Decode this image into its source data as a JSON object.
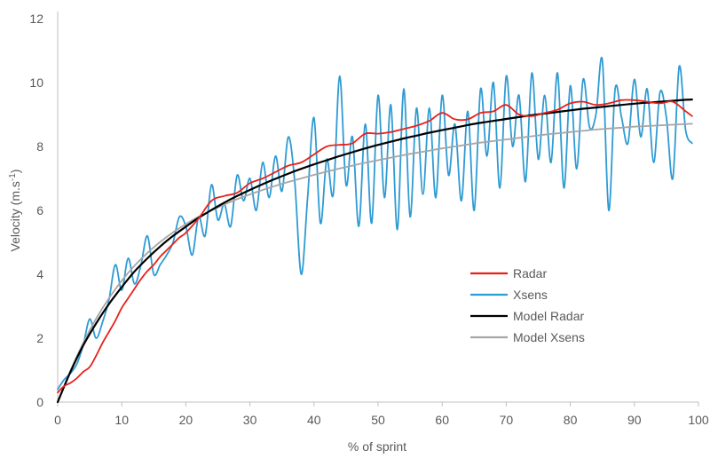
{
  "chart_data": {
    "type": "line",
    "title": "",
    "xlabel": "% of sprint",
    "ylabel_main": "Velocity (m.s",
    "ylabel_sup": "-1",
    "ylabel_close": ")",
    "xlim": [
      0,
      100
    ],
    "ylim": [
      0,
      12
    ],
    "x_ticks": [
      "0",
      "10",
      "20",
      "30",
      "40",
      "50",
      "60",
      "70",
      "80",
      "90",
      "100"
    ],
    "y_ticks": [
      "0",
      "2",
      "4",
      "6",
      "8",
      "10",
      "12"
    ],
    "grid": false,
    "legend_position": "right-center",
    "series": [
      {
        "name": "Radar",
        "color": "#e8201a",
        "x": [
          0,
          1,
          2,
          3,
          4,
          5,
          6,
          7,
          8,
          9,
          10,
          11,
          12,
          13,
          14,
          15,
          16,
          17,
          18,
          19,
          20,
          22,
          24,
          26,
          28,
          30,
          32,
          34,
          36,
          38,
          40,
          42,
          44,
          46,
          48,
          50,
          52,
          54,
          56,
          58,
          60,
          62,
          64,
          66,
          68,
          70,
          72,
          74,
          76,
          78,
          80,
          82,
          84,
          86,
          88,
          90,
          92,
          94,
          96,
          98,
          99
        ],
        "y": [
          0.3,
          0.5,
          0.6,
          0.75,
          0.95,
          1.1,
          1.45,
          1.85,
          2.2,
          2.55,
          2.95,
          3.25,
          3.55,
          3.85,
          4.1,
          4.3,
          4.55,
          4.75,
          4.95,
          5.15,
          5.3,
          5.75,
          6.3,
          6.45,
          6.55,
          6.85,
          7.0,
          7.2,
          7.4,
          7.5,
          7.75,
          8.0,
          8.05,
          8.1,
          8.4,
          8.4,
          8.45,
          8.55,
          8.65,
          8.8,
          9.05,
          8.85,
          8.85,
          9.05,
          9.1,
          9.3,
          9.0,
          8.95,
          9.05,
          9.15,
          9.35,
          9.4,
          9.3,
          9.35,
          9.45,
          9.45,
          9.4,
          9.35,
          9.4,
          9.1,
          8.95
        ]
      },
      {
        "name": "Xsens",
        "color": "#2f9bd3",
        "x": [
          0,
          1,
          2,
          3,
          4,
          5,
          6,
          7,
          8,
          9,
          10,
          11,
          12,
          13,
          14,
          15,
          16,
          17,
          18,
          19,
          20,
          21,
          22,
          23,
          24,
          25,
          26,
          27,
          28,
          29,
          30,
          31,
          32,
          33,
          34,
          35,
          36,
          37,
          38,
          39,
          40,
          41,
          42,
          43,
          44,
          45,
          46,
          47,
          48,
          49,
          50,
          51,
          52,
          53,
          54,
          55,
          56,
          57,
          58,
          59,
          60,
          61,
          62,
          63,
          64,
          65,
          66,
          67,
          68,
          69,
          70,
          71,
          72,
          73,
          74,
          75,
          76,
          77,
          78,
          79,
          80,
          81,
          82,
          83,
          84,
          85,
          86,
          87,
          88,
          89,
          90,
          91,
          92,
          93,
          94,
          95,
          96,
          97,
          98,
          99
        ],
        "y": [
          0.4,
          0.7,
          0.9,
          1.2,
          1.8,
          2.6,
          2.0,
          2.5,
          3.2,
          4.3,
          3.5,
          4.5,
          3.7,
          4.3,
          5.2,
          4.0,
          4.3,
          4.6,
          5.0,
          5.8,
          5.5,
          4.6,
          5.8,
          5.2,
          6.8,
          5.7,
          6.2,
          5.5,
          7.1,
          6.3,
          7.0,
          6.0,
          7.5,
          6.4,
          7.7,
          6.6,
          8.3,
          6.9,
          4.0,
          6.4,
          8.9,
          5.6,
          7.6,
          6.5,
          10.2,
          6.8,
          8.3,
          5.5,
          8.7,
          5.6,
          9.6,
          6.4,
          9.3,
          5.4,
          9.8,
          5.8,
          9.2,
          6.5,
          9.2,
          6.4,
          9.6,
          7.1,
          8.7,
          6.3,
          9.1,
          6.0,
          9.8,
          7.7,
          10.0,
          6.7,
          10.2,
          8.0,
          9.6,
          6.9,
          10.3,
          7.6,
          9.6,
          7.5,
          10.3,
          6.7,
          9.9,
          7.3,
          10.1,
          8.6,
          9.0,
          10.7,
          6.0,
          9.8,
          8.9,
          8.1,
          10.1,
          8.3,
          9.8,
          7.5,
          9.7,
          8.9,
          7.0,
          10.5,
          8.5,
          8.1
        ]
      },
      {
        "name": "Model Radar",
        "color": "#000000",
        "x": [
          0,
          2,
          4,
          6,
          8,
          10,
          12,
          14,
          16,
          18,
          20,
          22,
          24,
          26,
          28,
          30,
          32,
          34,
          36,
          38,
          40,
          42,
          44,
          46,
          48,
          50,
          52,
          54,
          56,
          58,
          60,
          62,
          64,
          66,
          68,
          70,
          72,
          74,
          76,
          78,
          80,
          82,
          84,
          86,
          88,
          90,
          92,
          94,
          96,
          98,
          99
        ],
        "y": [
          0,
          0.95,
          1.78,
          2.46,
          3.07,
          3.6,
          4.09,
          4.5,
          4.87,
          5.2,
          5.49,
          5.77,
          6.01,
          6.24,
          6.45,
          6.64,
          6.82,
          6.99,
          7.15,
          7.3,
          7.44,
          7.57,
          7.7,
          7.82,
          7.94,
          8.05,
          8.15,
          8.25,
          8.34,
          8.43,
          8.51,
          8.59,
          8.67,
          8.74,
          8.8,
          8.86,
          8.92,
          8.98,
          9.03,
          9.08,
          9.13,
          9.18,
          9.22,
          9.26,
          9.3,
          9.34,
          9.37,
          9.4,
          9.43,
          9.46,
          9.47
        ]
      },
      {
        "name": "Model Xsens",
        "color": "#a6a6a6",
        "x": [
          0,
          2,
          4,
          6,
          8,
          10,
          12,
          14,
          16,
          18,
          20,
          22,
          24,
          26,
          28,
          30,
          32,
          34,
          36,
          38,
          40,
          42,
          44,
          46,
          48,
          50,
          52,
          54,
          56,
          58,
          60,
          62,
          64,
          66,
          68,
          70,
          72,
          74,
          76,
          78,
          80,
          82,
          84,
          86,
          88,
          90,
          92,
          94,
          96,
          98,
          99
        ],
        "y": [
          0,
          0.98,
          1.86,
          2.61,
          3.25,
          3.8,
          4.27,
          4.67,
          5.01,
          5.31,
          5.57,
          5.8,
          6.0,
          6.18,
          6.35,
          6.5,
          6.64,
          6.77,
          6.89,
          7.0,
          7.11,
          7.21,
          7.31,
          7.4,
          7.49,
          7.57,
          7.65,
          7.73,
          7.8,
          7.87,
          7.94,
          8.0,
          8.06,
          8.12,
          8.17,
          8.22,
          8.27,
          8.32,
          8.37,
          8.41,
          8.45,
          8.49,
          8.53,
          8.56,
          8.59,
          8.62,
          8.64,
          8.66,
          8.68,
          8.7,
          8.71
        ]
      }
    ]
  }
}
